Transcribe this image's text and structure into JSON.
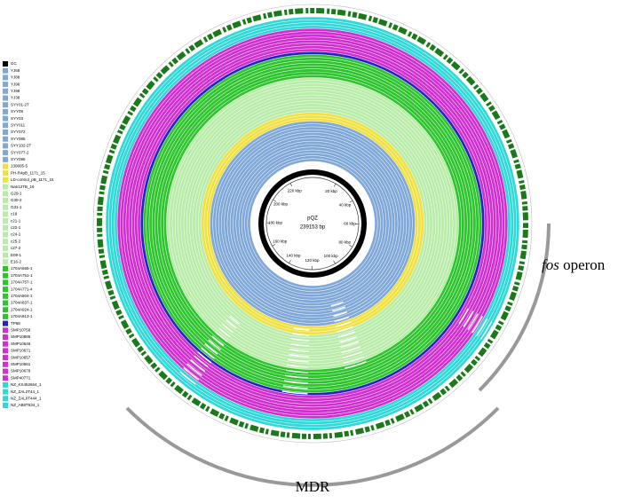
{
  "center": {
    "name": "pQZ",
    "length": {
      "value": 239153,
      "label": "239153 bp"
    }
  },
  "ring_ticks": [
    {
      "value": 20000,
      "label": "20 kbp"
    },
    {
      "value": 40000,
      "label": "40 kbp"
    },
    {
      "value": 60000,
      "label": "60 kbp"
    },
    {
      "value": 80000,
      "label": "80 kbp"
    },
    {
      "value": 100000,
      "label": "100 kbp"
    },
    {
      "value": 120000,
      "label": "120 kbp"
    },
    {
      "value": 140000,
      "label": "140 kbp"
    },
    {
      "value": 160000,
      "label": "160 kbp"
    },
    {
      "value": 180000,
      "label": "180 kbp"
    },
    {
      "value": 200000,
      "label": "200 kbp"
    },
    {
      "value": 220000,
      "label": "220 kbp"
    }
  ],
  "legend": [
    {
      "name": "GC",
      "color": "#000000"
    },
    {
      "name": "YJ68",
      "color": "#7fa8d8"
    },
    {
      "name": "YJ88",
      "color": "#7fa8d8"
    },
    {
      "name": "YJ96",
      "color": "#7fa8d8"
    },
    {
      "name": "YJ98",
      "color": "#7fa8d8"
    },
    {
      "name": "YJ38",
      "color": "#7fa8d8"
    },
    {
      "name": "SYY01-2T",
      "color": "#7fa8d8"
    },
    {
      "name": "SYY09",
      "color": "#7fa8d8"
    },
    {
      "name": "SYY03",
      "color": "#7fa8d8"
    },
    {
      "name": "SYY011",
      "color": "#7fa8d8"
    },
    {
      "name": "SYY072",
      "color": "#7fa8d8"
    },
    {
      "name": "SYY085",
      "color": "#7fa8d8"
    },
    {
      "name": "SYY102-2T",
      "color": "#7fa8d8"
    },
    {
      "name": "SYY077-2",
      "color": "#7fa8d8"
    },
    {
      "name": "SYY096",
      "color": "#7fa8d8"
    },
    {
      "name": "130605-5",
      "color": "#f0e040"
    },
    {
      "name": "PH-R4pB_1171_15",
      "color": "#f0e040"
    },
    {
      "name": "LD-control_pB_1171_15",
      "color": "#f0e040"
    },
    {
      "name": "Nan12TB_16",
      "color": "#b8eca8"
    },
    {
      "name": "G29-1",
      "color": "#b8eca8"
    },
    {
      "name": "G30-2",
      "color": "#b8eca8"
    },
    {
      "name": "G31-1",
      "color": "#b8eca8"
    },
    {
      "name": "c19",
      "color": "#b8eca8"
    },
    {
      "name": "c21-1",
      "color": "#b8eca8"
    },
    {
      "name": "c22-1",
      "color": "#b8eca8"
    },
    {
      "name": "c24-1",
      "color": "#b8eca8"
    },
    {
      "name": "c25-2",
      "color": "#b8eca8"
    },
    {
      "name": "c27-2",
      "color": "#b8eca8"
    },
    {
      "name": "E09-1",
      "color": "#b8eca8"
    },
    {
      "name": "E16-2",
      "color": "#b8eca8"
    },
    {
      "name": "1704A655-1",
      "color": "#2ec42e"
    },
    {
      "name": "1704A751-1",
      "color": "#2ec42e"
    },
    {
      "name": "1704A757-1",
      "color": "#2ec42e"
    },
    {
      "name": "1704A771-4",
      "color": "#2ec42e"
    },
    {
      "name": "1704A804-1",
      "color": "#2ec42e"
    },
    {
      "name": "1704A837-1",
      "color": "#2ec42e"
    },
    {
      "name": "1704A924-1",
      "color": "#2ec42e"
    },
    {
      "name": "1704A913-1",
      "color": "#2ec42e"
    },
    {
      "name": "TP68",
      "color": "#2424c8"
    },
    {
      "name": "SMP10758",
      "color": "#d030d0"
    },
    {
      "name": "SMP10886",
      "color": "#d030d0"
    },
    {
      "name": "SMP10646",
      "color": "#d030d0"
    },
    {
      "name": "SMP10671",
      "color": "#d030d0"
    },
    {
      "name": "SMP10657",
      "color": "#d030d0"
    },
    {
      "name": "SMP10661",
      "color": "#d030d0"
    },
    {
      "name": "SMP10679",
      "color": "#d030d0"
    },
    {
      "name": "SMP40771",
      "color": "#d030d0"
    },
    {
      "name": "NZ_KX452664_1",
      "color": "#30d8d8"
    },
    {
      "name": "NZ_ZAL2T44_1",
      "color": "#30d8d8"
    },
    {
      "name": "NZ_ZAL0T444_1",
      "color": "#30d8d8"
    },
    {
      "name": "NZ_AB8T534_1",
      "color": "#30d8d8"
    }
  ],
  "regions": {
    "fos_italic": "fos",
    "fos_rest": "operon",
    "mdr": "MDR"
  }
}
